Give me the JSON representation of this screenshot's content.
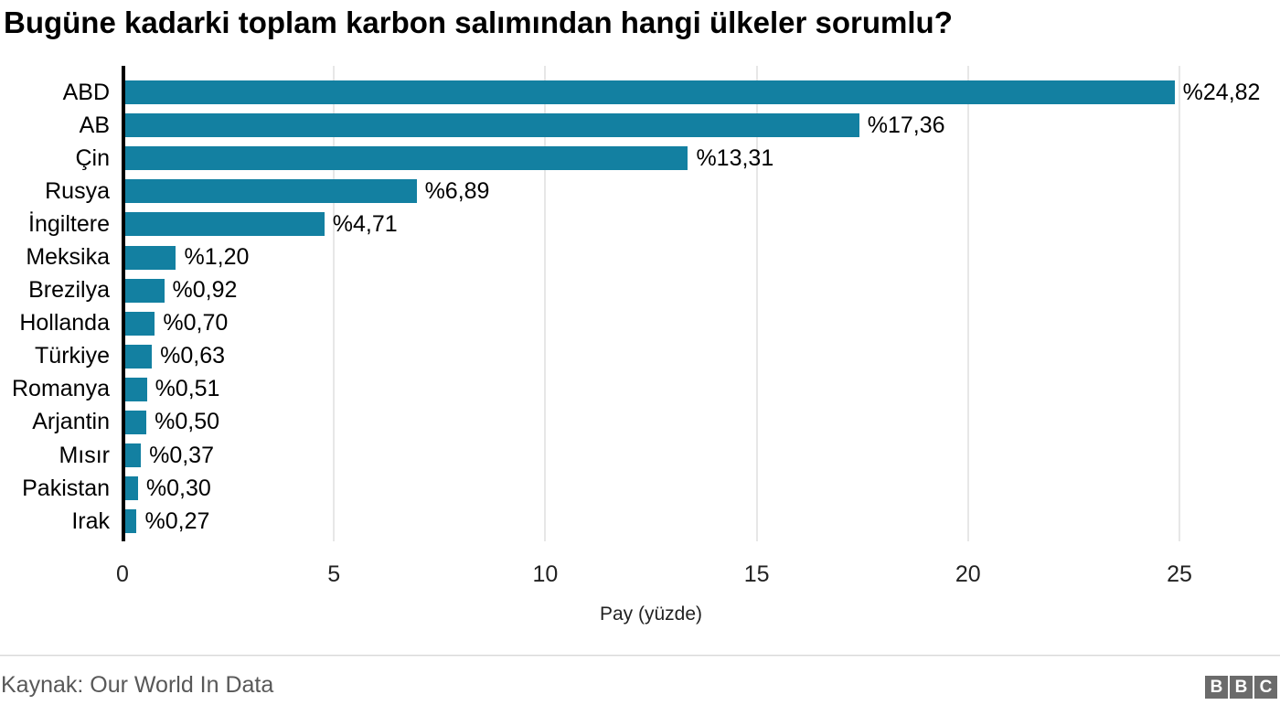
{
  "chart_data": {
    "type": "bar",
    "orientation": "horizontal",
    "title": "Bugüne kadarki toplam karbon salımından hangi ülkeler sorumlu?",
    "categories": [
      "ABD",
      "AB",
      "Çin",
      "Rusya",
      "İngiltere",
      "Meksika",
      "Brezilya",
      "Hollanda",
      "Türkiye",
      "Romanya",
      "Arjantin",
      "Mısır",
      "Pakistan",
      "Irak"
    ],
    "values": [
      24.82,
      17.36,
      13.31,
      6.89,
      4.71,
      1.2,
      0.92,
      0.7,
      0.63,
      0.51,
      0.5,
      0.37,
      0.3,
      0.27
    ],
    "value_labels": [
      "%24,82",
      "%17,36",
      "%13,31",
      "%6,89",
      "%4,71",
      "%1,20",
      "%0,92",
      "%0,70",
      "%0,63",
      "%0,51",
      "%0,50",
      "%0,37",
      "%0,30",
      "%0,27"
    ],
    "xlabel": "Pay (yüzde)",
    "x_ticks": [
      0,
      5,
      10,
      15,
      20,
      25
    ],
    "xlim": [
      0,
      27.3
    ],
    "grid": true,
    "legend": "none",
    "bar_color": "#1380a1",
    "gridline_color": "#e7e7e7"
  },
  "footer": {
    "source": "Kaynak: Our World In Data",
    "logo_letters": [
      "B",
      "B",
      "C"
    ]
  }
}
